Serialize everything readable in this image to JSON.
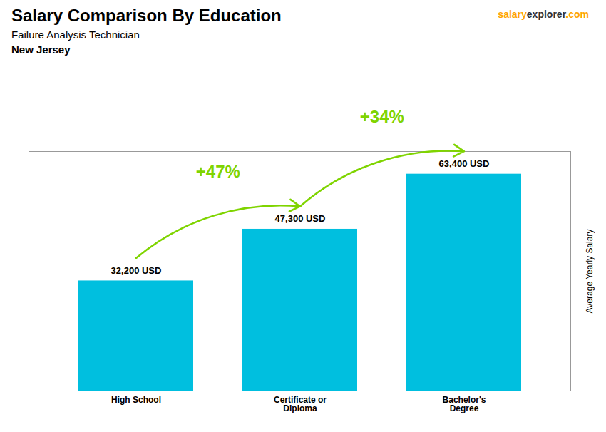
{
  "chart_data": {
    "type": "bar",
    "title": "Salary Comparison By Education",
    "subtitle": "Failure Analysis Technician",
    "ylabel": "Average Yearly Salary",
    "categories": [
      "High School",
      "Certificate or\nDiploma",
      "Bachelor's\nDegree"
    ],
    "values": [
      32200,
      47300,
      63400
    ],
    "value_labels": [
      "32,200 USD",
      "47,300 USD",
      "63,400 USD"
    ],
    "data_labels": true,
    "color": "#00BFDF",
    "ylim": [
      0,
      70000
    ],
    "grid": false,
    "tick_labels": "x",
    "annotations": [
      {
        "text": "+47%",
        "from": "High School",
        "to": "Certificate or\nDiploma"
      },
      {
        "text": "+34%",
        "from": "Certificate or\nDiploma",
        "to": "Bachelor's\nDegree"
      },
      {
        "text": "New Jersey"
      },
      {
        "text": "salary"
      },
      {
        "text": "explorer"
      },
      {
        "text": ".com"
      }
    ]
  }
}
